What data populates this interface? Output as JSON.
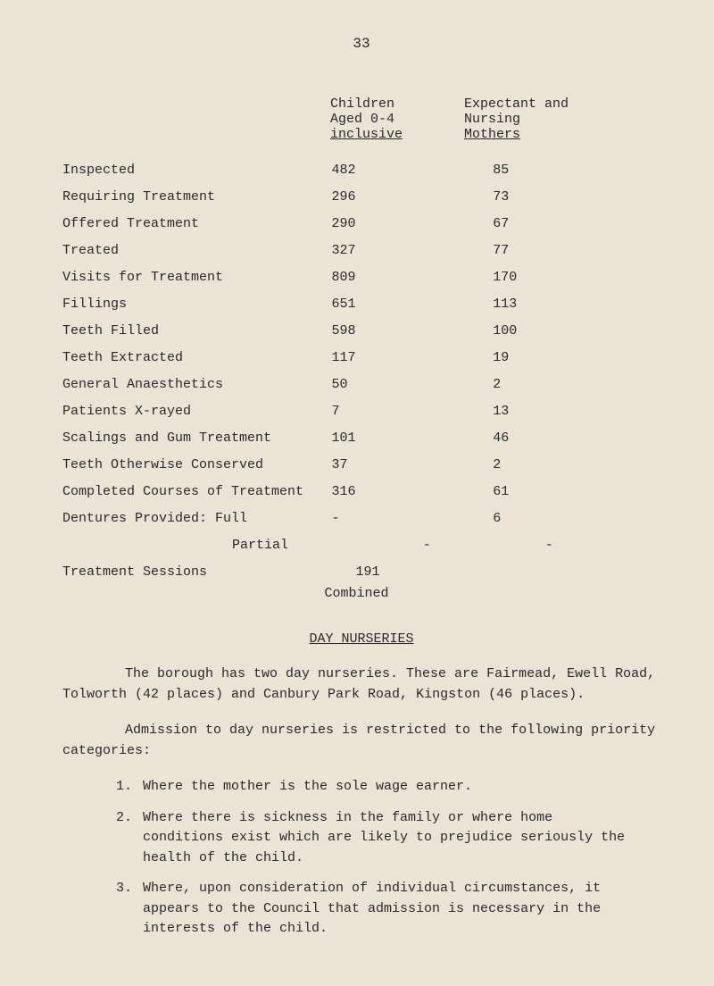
{
  "page_number": "33",
  "table": {
    "header": {
      "col1_line1": "Children",
      "col1_line2": "Aged 0-4",
      "col1_line3": "inclusive",
      "col2_line1": "Expectant and",
      "col2_line2": "Nursing",
      "col2_line3": "Mothers"
    },
    "rows": [
      {
        "label": "Inspected",
        "children": "482",
        "mothers": "85"
      },
      {
        "label": "Requiring Treatment",
        "children": "296",
        "mothers": "73"
      },
      {
        "label": "Offered Treatment",
        "children": "290",
        "mothers": "67"
      },
      {
        "label": "Treated",
        "children": "327",
        "mothers": "77"
      },
      {
        "label": "Visits for Treatment",
        "children": "809",
        "mothers": "170"
      },
      {
        "label": "Fillings",
        "children": "651",
        "mothers": "113"
      },
      {
        "label": "Teeth Filled",
        "children": "598",
        "mothers": "100"
      },
      {
        "label": "Teeth Extracted",
        "children": "117",
        "mothers": "19"
      },
      {
        "label": "General Anaesthetics",
        "children": "50",
        "mothers": "2"
      },
      {
        "label": "Patients X-rayed",
        "children": "7",
        "mothers": "13"
      },
      {
        "label": "Scalings and Gum Treatment",
        "children": "101",
        "mothers": "46"
      },
      {
        "label": "Teeth Otherwise Conserved",
        "children": "37",
        "mothers": "2"
      },
      {
        "label": "Completed Courses of Treatment",
        "children": "316",
        "mothers": "61"
      },
      {
        "label": "Dentures Provided:  Full",
        "children": "-",
        "mothers": "6"
      },
      {
        "label": "Partial",
        "children": "-",
        "mothers": "-",
        "indent": true
      }
    ],
    "treatment_sessions": {
      "label": "Treatment Sessions",
      "value": "191",
      "combined": "Combined"
    }
  },
  "section_title": "DAY NURSERIES",
  "para1": "The borough has two day nurseries. These are Fairmead, Ewell Road, Tolworth (42 places) and Canbury Park Road, Kingston (46 places).",
  "para2": "Admission to day nurseries is restricted to the following priority categories:",
  "list": [
    {
      "num": "1.",
      "text": "Where the mother is the sole wage earner."
    },
    {
      "num": "2.",
      "text": "Where there is sickness in the family or where home conditions exist which are likely to prejudice seriously the health of the child."
    },
    {
      "num": "3.",
      "text": "Where, upon consideration of individual circumstances, it appears to the Council that admission is necessary in the interests of the child."
    }
  ],
  "colors": {
    "background": "#eae3d6",
    "text": "#2a2a2a"
  },
  "typography": {
    "font_family": "Courier New",
    "body_fontsize": 15,
    "line_height": 1.5
  }
}
